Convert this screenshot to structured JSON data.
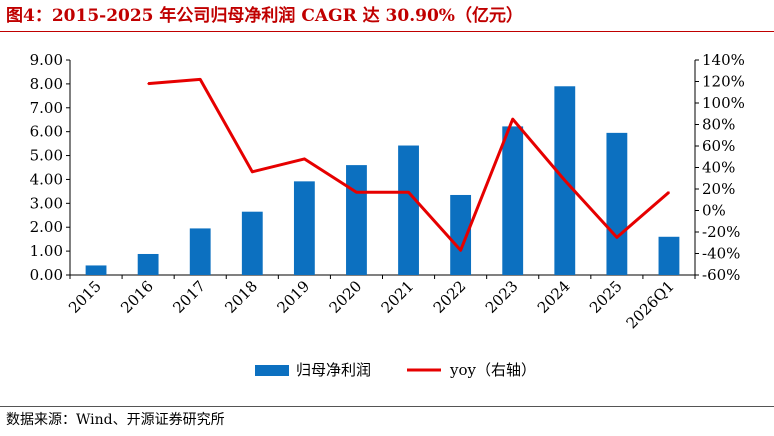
{
  "figure": {
    "title": "图4：2015-2025 年公司归母净利润 CAGR 达 30.90%（亿元）",
    "source": "数据来源：Wind、开源证券研究所"
  },
  "colors": {
    "bar": "#0c70c0",
    "line": "#e60000",
    "title": "#c00000"
  },
  "chart_data": {
    "type": "bar",
    "categories": [
      "2015",
      "2016",
      "2017",
      "2018",
      "2019",
      "2020",
      "2021",
      "2022",
      "2023",
      "2024",
      "2025",
      "2026Q1"
    ],
    "y_left": {
      "ylim": [
        0,
        9
      ],
      "ticks": [
        0,
        1,
        2,
        3,
        4,
        5,
        6,
        7,
        8,
        9
      ],
      "tick_labels": [
        "0.00",
        "1.00",
        "2.00",
        "3.00",
        "4.00",
        "5.00",
        "6.00",
        "7.00",
        "8.00",
        "9.00"
      ]
    },
    "y_right": {
      "ylim": [
        -60,
        140
      ],
      "ticks": [
        -60,
        -40,
        -20,
        0,
        20,
        40,
        60,
        80,
        100,
        120,
        140
      ],
      "tick_labels": [
        "-60%",
        "-40%",
        "-20%",
        "0%",
        "20%",
        "40%",
        "60%",
        "80%",
        "100%",
        "120%",
        "140%"
      ]
    },
    "series": [
      {
        "name": "归母净利润",
        "type": "bar",
        "axis": "left",
        "values": [
          0.4,
          0.88,
          1.95,
          2.65,
          3.92,
          4.6,
          5.42,
          3.35,
          6.22,
          7.9,
          5.95,
          1.6
        ]
      },
      {
        "name": "yoy（右轴）",
        "type": "line",
        "axis": "right",
        "values": [
          null,
          118,
          122,
          36,
          48,
          17,
          17,
          -37,
          85,
          28,
          -25,
          17
        ]
      }
    ],
    "grid": false,
    "legend": "bottom-center"
  }
}
